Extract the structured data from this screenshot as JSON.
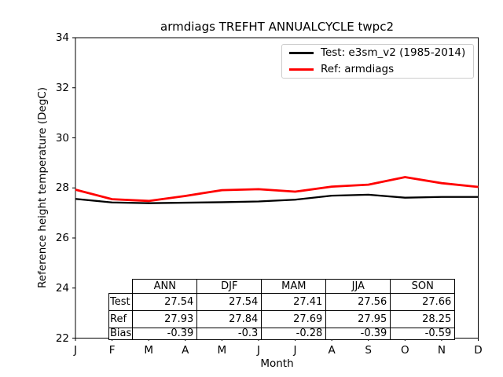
{
  "title": "armdiags TREFHT ANNUALCYCLE twpc2",
  "chart_data": {
    "type": "line",
    "title": "armdiags TREFHT ANNUALCYCLE twpc2",
    "xlabel": "Month",
    "ylabel": "Reference height temperature (DegC)",
    "x_tick_labels": [
      "J",
      "F",
      "M",
      "A",
      "M",
      "J",
      "J",
      "A",
      "S",
      "O",
      "N",
      "D"
    ],
    "y_ticks": [
      22,
      24,
      26,
      28,
      30,
      32,
      34
    ],
    "ylim": [
      22,
      34
    ],
    "grid": false,
    "legend_position": "upper right",
    "series": [
      {
        "name": "Test: e3sm_v2 (1985-2014)",
        "color": "#000000",
        "linewidth": 2.3,
        "values": [
          27.56,
          27.42,
          27.39,
          27.41,
          27.43,
          27.46,
          27.53,
          27.69,
          27.73,
          27.61,
          27.64,
          27.64
        ]
      },
      {
        "name": "Ref: armdiags",
        "color": "#ff0000",
        "linewidth": 2.8,
        "values": [
          27.93,
          27.55,
          27.48,
          27.68,
          27.91,
          27.95,
          27.85,
          28.05,
          28.13,
          28.43,
          28.19,
          28.04
        ]
      }
    ],
    "stats_table": {
      "columns": [
        "ANN",
        "DJF",
        "MAM",
        "JJA",
        "SON"
      ],
      "rows": [
        {
          "label": "Test",
          "values": [
            "27.54",
            "27.54",
            "27.41",
            "27.56",
            "27.66"
          ]
        },
        {
          "label": "Ref",
          "values": [
            "27.93",
            "27.84",
            "27.69",
            "27.95",
            "28.25"
          ]
        },
        {
          "label": "Bias",
          "values": [
            "-0.39",
            "-0.3",
            "-0.28",
            "-0.39",
            "-0.59"
          ]
        }
      ]
    }
  }
}
